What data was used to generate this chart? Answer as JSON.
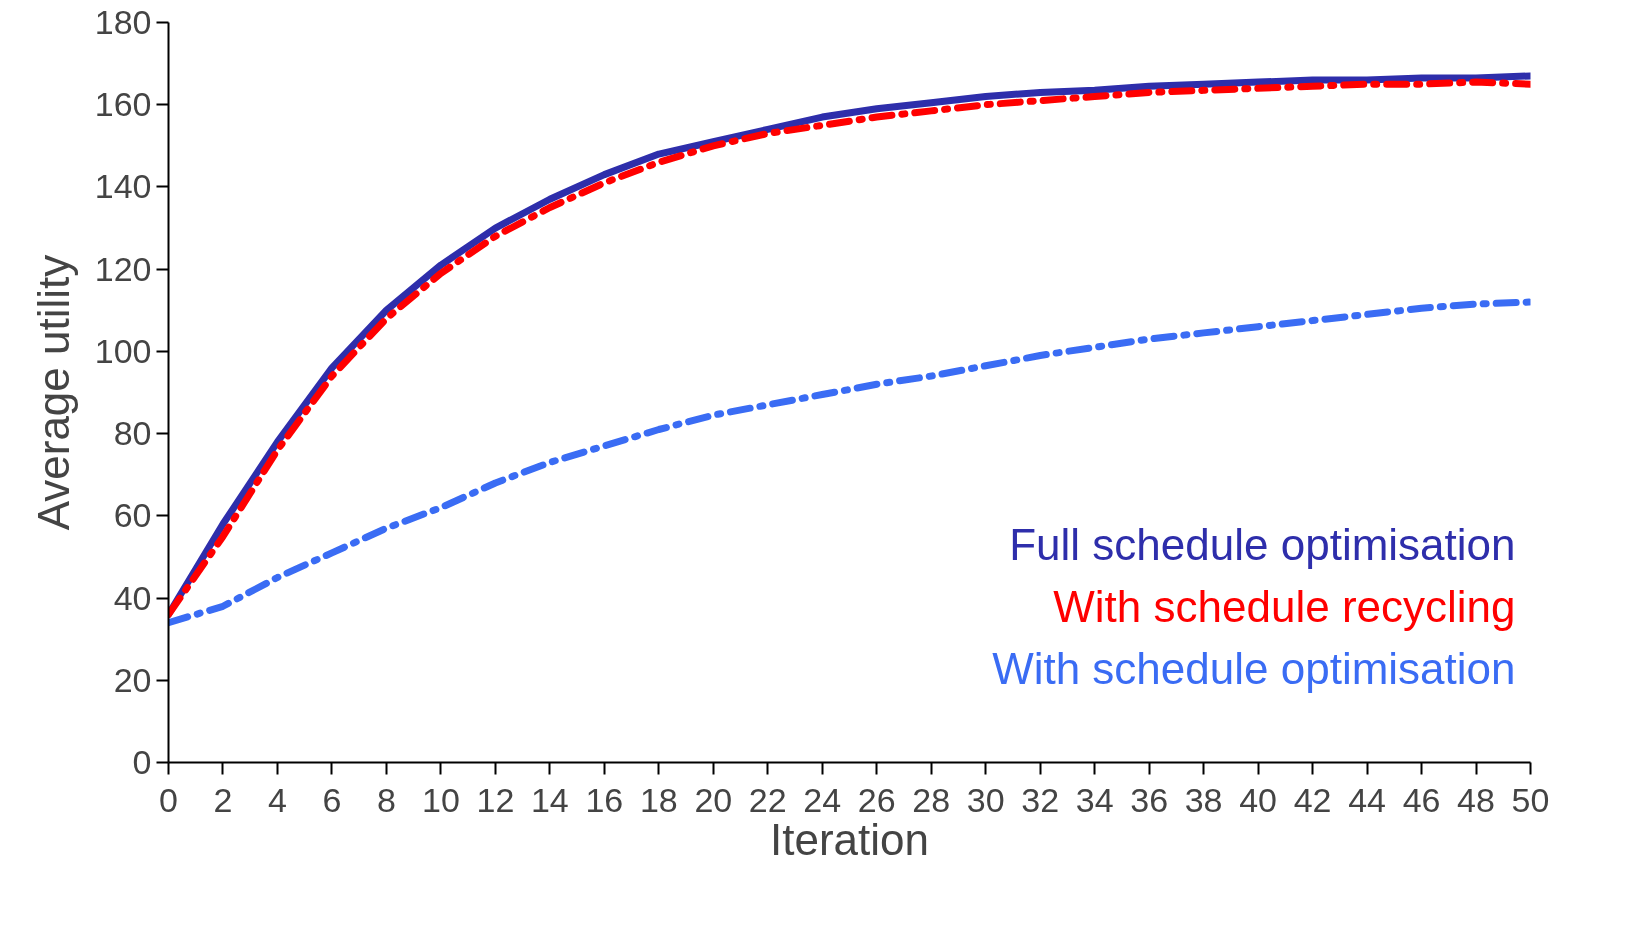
{
  "chart_data": {
    "type": "line",
    "xlabel": "Iteration",
    "ylabel": "Average utility",
    "x": [
      0,
      2,
      4,
      6,
      8,
      10,
      12,
      14,
      16,
      18,
      20,
      22,
      24,
      26,
      28,
      30,
      32,
      34,
      36,
      38,
      40,
      42,
      44,
      46,
      48,
      50
    ],
    "series": [
      {
        "name": "Full schedule optimisation",
        "color": "#2e2eab",
        "line_style": "solid",
        "values": [
          36,
          58,
          78,
          96,
          110,
          121,
          130,
          137,
          143,
          148,
          151,
          154,
          157,
          159,
          160.5,
          162,
          163,
          163.5,
          164.5,
          165,
          165.5,
          166,
          166,
          166.5,
          166.5,
          167
        ]
      },
      {
        "name": "With schedule recycling",
        "color": "#ff0000",
        "line_style": "dashed",
        "values": [
          36,
          55,
          76,
          94,
          108,
          119,
          128,
          135,
          141,
          146,
          150,
          153,
          155,
          157,
          158.5,
          160,
          161,
          162,
          163,
          163.5,
          164,
          164.5,
          165,
          165,
          165.5,
          165
        ]
      },
      {
        "name": "With schedule optimisation",
        "color": "#3a6cf4",
        "line_style": "dashed",
        "values": [
          34,
          38,
          45,
          51,
          57,
          62,
          68,
          73,
          77,
          81,
          84.5,
          87,
          89.5,
          92,
          94,
          96.5,
          99,
          101,
          103,
          104.5,
          106,
          107.5,
          109,
          110.5,
          111.5,
          112
        ]
      }
    ],
    "xlim": [
      0,
      50
    ],
    "xticks": [
      0,
      2,
      4,
      6,
      8,
      10,
      12,
      14,
      16,
      18,
      20,
      22,
      24,
      26,
      28,
      30,
      32,
      34,
      36,
      38,
      40,
      42,
      44,
      46,
      48,
      50
    ],
    "ylim": [
      0,
      180
    ],
    "yticks": [
      0,
      20,
      40,
      60,
      80,
      100,
      120,
      140,
      160,
      180
    ],
    "grid": false,
    "legend": "bottom right",
    "marker": "none"
  }
}
